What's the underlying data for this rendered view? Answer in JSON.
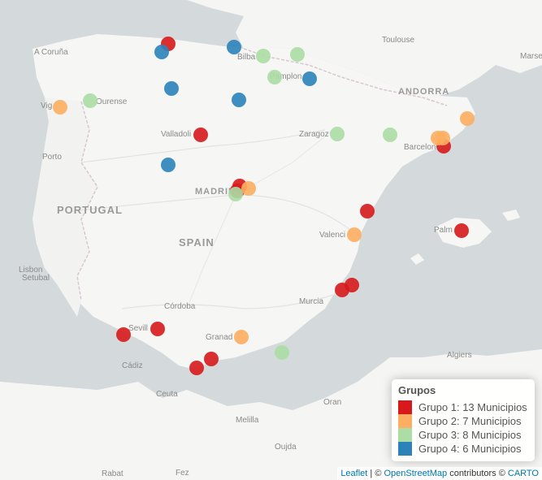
{
  "places": {
    "acoruna": "A Coruña",
    "bilbao": "Bilba",
    "pamplona": "Pamplon",
    "toulouse": "Toulouse",
    "marseille": "Marse",
    "andorra": "ANDORRA",
    "vigo": "Vig",
    "ourense": "Ourense",
    "valladolid": "Valladoli",
    "zaragoza": "Zaragoz",
    "barcelona": "Barcelon",
    "porto": "Porto",
    "madrid": "MADRID",
    "portugal": "PORTUGAL",
    "spain": "SPAIN",
    "valencia": "Valenci",
    "palma": "Palm",
    "lisbon": "Lisbon",
    "setubal": "Setubal",
    "cordoba": "Córdoba",
    "murcia": "Murcia",
    "seville": "Sevill",
    "granada": "Granad",
    "algiers": "Algiers",
    "cadiz": "Cádiz",
    "ceuta": "Ceuta",
    "oran": "Oran",
    "melilla": "Melilla",
    "oujda": "Oujda",
    "rabat": "Rabat",
    "fez": "Fez"
  },
  "groups": [
    {
      "color": "#d7191c",
      "label": "Grupo 1: 13 Municipios"
    },
    {
      "color": "#fdae61",
      "label": "Grupo 2: 7 Municipios"
    },
    {
      "color": "#abdda4",
      "label": "Grupo 3: 8 Municipios"
    },
    {
      "color": "#2b83ba",
      "label": "Grupo 4: 6 Municipios"
    }
  ],
  "legend": {
    "title": "Grupos",
    "items": [
      "Grupo 1: 13 Municipios",
      "Grupo 2: 7 Municipios",
      "Grupo 3: 8 Municipios",
      "Grupo 4: 6 Municipios"
    ]
  },
  "attribution": {
    "leaflet": "Leaflet",
    "sep1": " | © ",
    "osm": "OpenStreetMap",
    "mid": " contributors © ",
    "carto": "CARTO"
  }
}
